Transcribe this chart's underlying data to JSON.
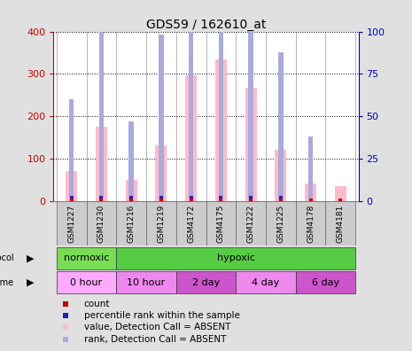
{
  "title": "GDS59 / 162610_at",
  "samples": [
    "GSM1227",
    "GSM1230",
    "GSM1216",
    "GSM1219",
    "GSM4172",
    "GSM4175",
    "GSM1222",
    "GSM1225",
    "GSM4178",
    "GSM4181"
  ],
  "pink_values": [
    70,
    175,
    50,
    132,
    297,
    335,
    268,
    120,
    42,
    35
  ],
  "blue_rank_values": [
    60,
    115,
    47,
    98,
    163,
    168,
    152,
    88,
    38,
    0
  ],
  "has_red": [
    true,
    true,
    true,
    true,
    true,
    true,
    true,
    true,
    true,
    true
  ],
  "has_blue": [
    true,
    true,
    true,
    true,
    true,
    true,
    true,
    true,
    false,
    false
  ],
  "protocol_groups": [
    {
      "label": "normoxic",
      "start": 0,
      "end": 2,
      "color": "#77dd55"
    },
    {
      "label": "hypoxic",
      "start": 2,
      "end": 10,
      "color": "#77dd55"
    }
  ],
  "time_groups": [
    {
      "label": "0 hour",
      "start": 0,
      "end": 2
    },
    {
      "label": "10 hour",
      "start": 2,
      "end": 4
    },
    {
      "label": "2 day",
      "start": 4,
      "end": 6
    },
    {
      "label": "4 day",
      "start": 6,
      "end": 8
    },
    {
      "label": "6 day",
      "start": 8,
      "end": 10
    }
  ],
  "time_colors": [
    "#ffaaff",
    "#ee88ee",
    "#cc55cc",
    "#ee88ee",
    "#cc55cc"
  ],
  "ylim_left": [
    0,
    400
  ],
  "ylim_right": [
    0,
    100
  ],
  "yticks_left": [
    0,
    100,
    200,
    300,
    400
  ],
  "yticks_right": [
    0,
    25,
    50,
    75,
    100
  ],
  "left_axis_color": "#cc0000",
  "right_axis_color": "#0000bb",
  "bg_color": "#e0e0e0",
  "plot_bg": "#ffffff",
  "pink_color": "#ffbbcc",
  "light_blue_color": "#aaaadd",
  "red_color": "#cc0000",
  "blue_color": "#2222bb",
  "green_color": "#55cc44"
}
